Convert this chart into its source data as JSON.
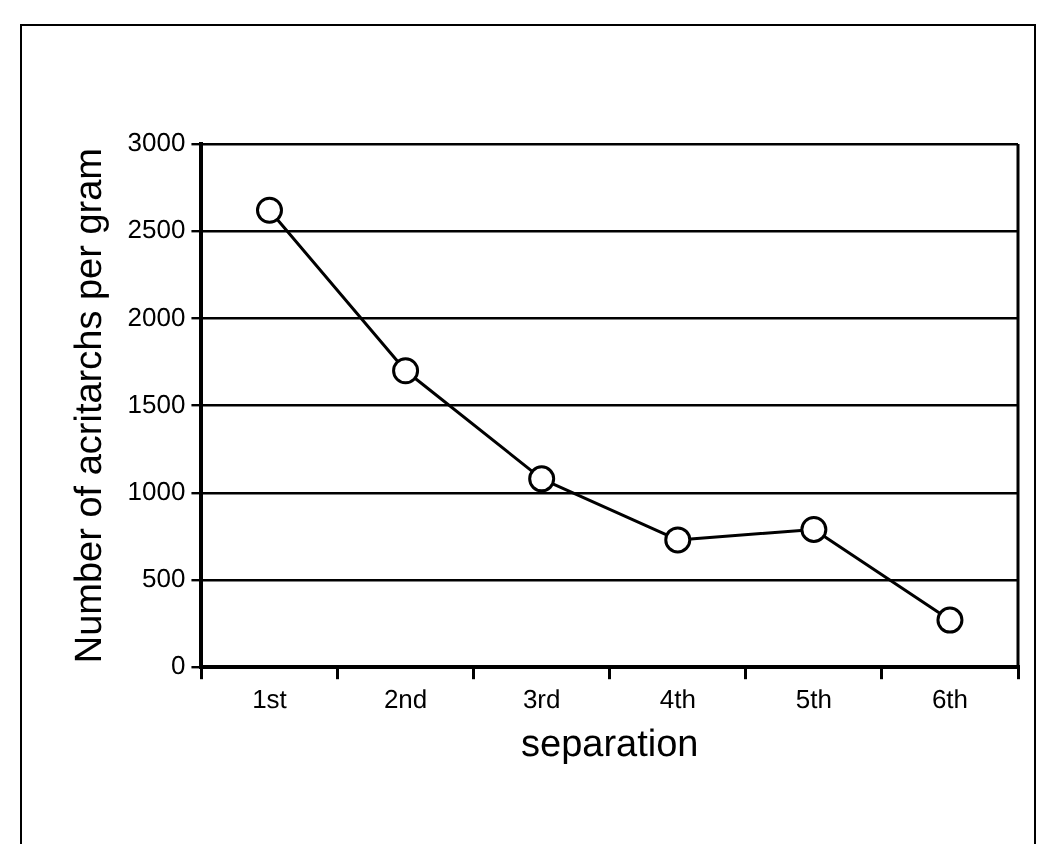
{
  "chart_data": {
    "type": "line",
    "xlabel": "separation",
    "ylabel": "Number of acritarchs per gram",
    "categories": [
      "1st",
      "2nd",
      "3rd",
      "4th",
      "5th",
      "6th"
    ],
    "series": [
      {
        "color": "#000000",
        "values": [
          2620,
          1700,
          1080,
          730,
          790,
          270
        ]
      }
    ],
    "ylim": [
      0,
      3000
    ],
    "yticks": [
      0,
      500,
      1000,
      1500,
      2000,
      2500,
      3000
    ],
    "grid": "y",
    "legend": false,
    "marker": "circle",
    "line_style": "solid"
  }
}
